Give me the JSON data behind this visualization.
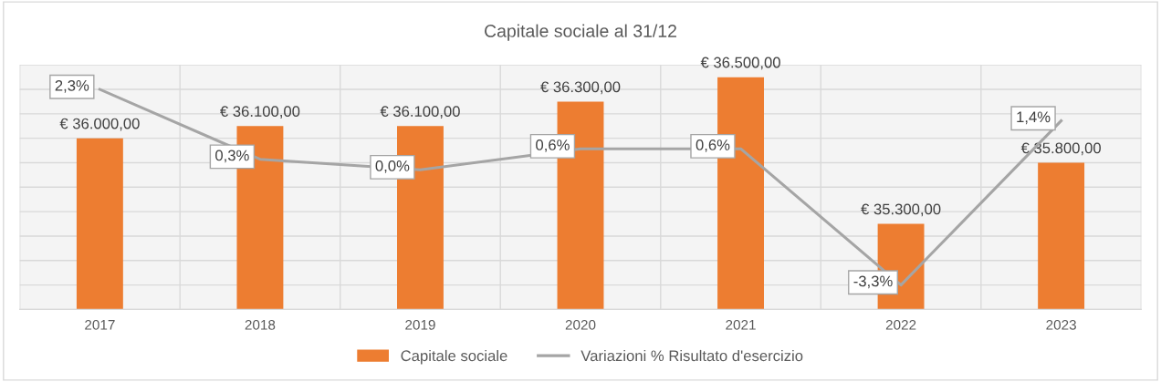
{
  "chart_data": {
    "type": "bar",
    "title": "Capitale sociale al 31/12",
    "categories": [
      "2017",
      "2018",
      "2019",
      "2020",
      "2021",
      "2022",
      "2023"
    ],
    "series": [
      {
        "name": "Capitale sociale",
        "color": "#ed7d31",
        "values": [
          36000,
          36100,
          36100,
          36300,
          36500,
          35300,
          35800
        ],
        "value_labels": [
          "€ 36.000,00",
          "€ 36.100,00",
          "€ 36.100,00",
          "€ 36.300,00",
          "€ 36.500,00",
          "€ 35.300,00",
          "€ 35.800,00"
        ]
      },
      {
        "name": "Variazioni % Risultato d'esercizio",
        "type": "line",
        "axis": "y2",
        "color": "#a5a5a5",
        "values": [
          2.3,
          0.3,
          0.0,
          0.6,
          0.6,
          -3.3,
          1.4
        ],
        "value_labels": [
          "2,3%",
          "0,3%",
          "0,0%",
          "0,6%",
          "0,6%",
          "-3,3%",
          "1,4%"
        ]
      }
    ],
    "ylim": [
      34600,
      36600
    ],
    "yticks": [
      {
        "value": 34600,
        "label": null
      },
      {
        "value": 34800,
        "label": null
      },
      {
        "value": 35000,
        "label": null
      },
      {
        "value": 35200,
        "label": null
      },
      {
        "value": 35400,
        "label": null
      },
      {
        "value": 35600,
        "label": null
      },
      {
        "value": 35800,
        "label": null
      },
      {
        "value": 36000,
        "label": null
      },
      {
        "value": 36200,
        "label": null
      },
      {
        "value": 36400,
        "label": null
      },
      {
        "value": 36600,
        "label": null
      }
    ],
    "y2lim": [
      -4,
      3
    ],
    "tick_labels": "x",
    "grid": true,
    "legend": "bottom",
    "marker": "none"
  }
}
